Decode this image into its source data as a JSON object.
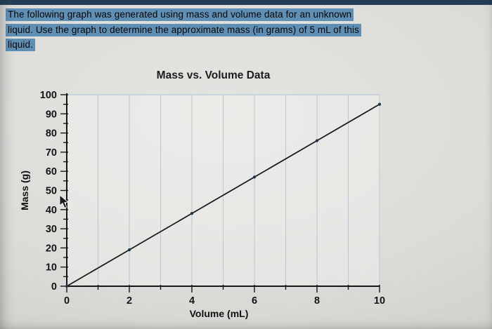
{
  "page": {
    "background": "#d8d9d4",
    "top_bar_color": "#24415c"
  },
  "question": {
    "highlight_color": "#5f8fb5",
    "lines": [
      "The following graph was generated using mass and volume data for an unknown",
      "liquid. Use the graph to determine the approximate mass (in grams) of 5 mL of this",
      "liquid."
    ]
  },
  "chart_data": {
    "type": "line",
    "title": "Mass vs. Volume Data",
    "xlabel": "Volume (mL)",
    "ylabel": "Mass (g)",
    "x": [
      0,
      2,
      4,
      6,
      8,
      10
    ],
    "y": [
      0,
      19,
      38,
      57,
      76,
      95
    ],
    "xlim": [
      0,
      10
    ],
    "ylim": [
      0,
      100
    ],
    "x_tick_labels": [
      0,
      2,
      4,
      6,
      8,
      10
    ],
    "y_tick_labels": [
      0,
      10,
      20,
      30,
      40,
      50,
      60,
      70,
      80,
      90,
      100
    ],
    "x_minor_step": 1,
    "y_minor_step": 5,
    "grid": "vertical",
    "legend": "none",
    "line_color": "#1c1c1c",
    "marker_color": "#1f3550",
    "grid_color": "#b8c7d6",
    "axis_color": "#161616"
  }
}
